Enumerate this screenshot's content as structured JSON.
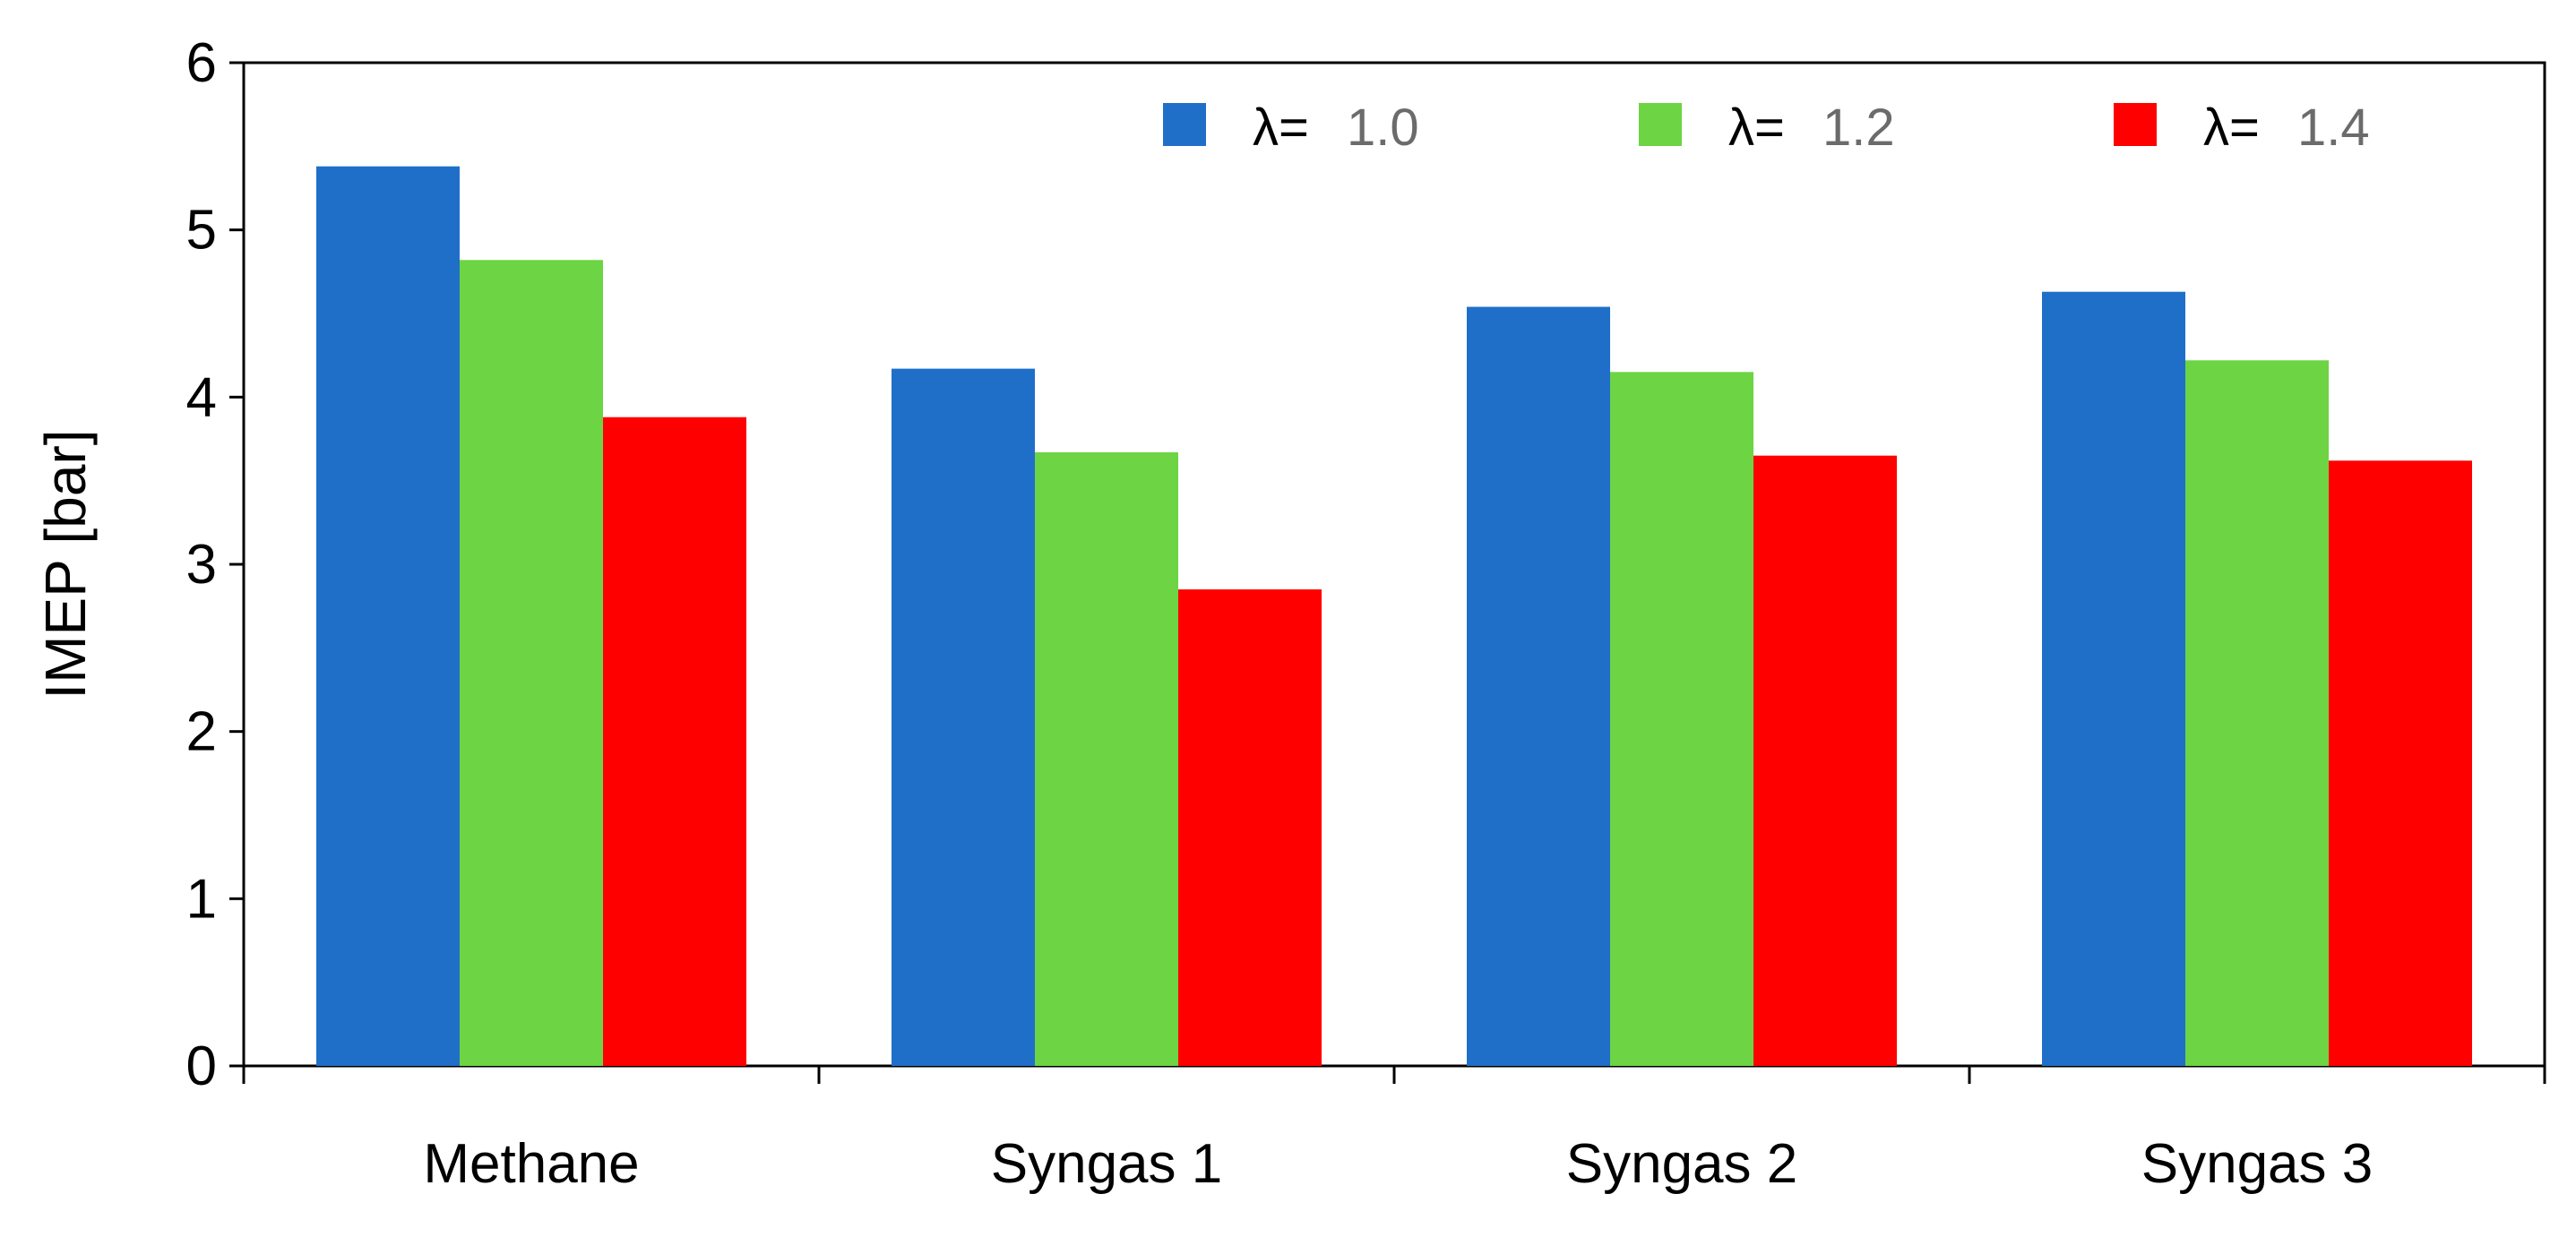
{
  "chart_data": {
    "type": "bar",
    "title": "",
    "xlabel": "",
    "ylabel": "IMEP [bar]",
    "ylim": [
      0,
      6
    ],
    "yticks": [
      "0",
      "1",
      "2",
      "3",
      "4",
      "5",
      "6"
    ],
    "categories": [
      "Methane",
      "Syngas 1",
      "Syngas 2",
      "Syngas 3"
    ],
    "legend_position": "top-right",
    "series": [
      {
        "name": "λ= 1.0",
        "symbol": "λ=",
        "value_label": "1.0",
        "color": "#1F6FC9",
        "values": [
          5.38,
          4.17,
          4.54,
          4.63
        ]
      },
      {
        "name": "λ= 1.2",
        "symbol": "λ=",
        "value_label": "1.2",
        "color": "#6DD444",
        "values": [
          4.82,
          3.67,
          4.15,
          4.22
        ]
      },
      {
        "name": "λ= 1.4",
        "symbol": "λ=",
        "value_label": "1.4",
        "color": "#FF0000",
        "values": [
          3.88,
          2.85,
          3.65,
          3.62
        ]
      }
    ]
  }
}
